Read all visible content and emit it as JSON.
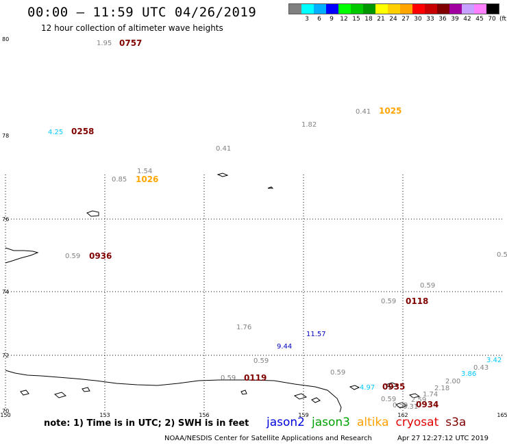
{
  "header": {
    "title": "00:00 – 11:59 UTC 04/26/2019",
    "subtitle": "12 hour collection of altimeter wave heights"
  },
  "legend": {
    "unit": "(ft)",
    "swatches": [
      {
        "color": "#808080",
        "label": ""
      },
      {
        "color": "#00ffff",
        "label": "3"
      },
      {
        "color": "#00b0ff",
        "label": "6"
      },
      {
        "color": "#0000ff",
        "label": "9"
      },
      {
        "color": "#00ff00",
        "label": "12"
      },
      {
        "color": "#00c800",
        "label": "15"
      },
      {
        "color": "#009600",
        "label": "18"
      },
      {
        "color": "#ffff00",
        "label": "21"
      },
      {
        "color": "#ffd000",
        "label": "24"
      },
      {
        "color": "#ffa500",
        "label": "27"
      },
      {
        "color": "#ff0000",
        "label": "30"
      },
      {
        "color": "#c80000",
        "label": "33"
      },
      {
        "color": "#800000",
        "label": "36"
      },
      {
        "color": "#a000a0",
        "label": "39"
      },
      {
        "color": "#c8a0ff",
        "label": "42"
      },
      {
        "color": "#ff80ff",
        "label": "45"
      },
      {
        "color": "#000000",
        "label": "70"
      }
    ]
  },
  "axes": {
    "latitude_labels": [
      "80",
      "78",
      "76",
      "74",
      "72",
      "70"
    ],
    "longitude_labels": [
      "150",
      "153",
      "156",
      "159",
      "162",
      "165"
    ]
  },
  "observations": [
    {
      "value": "1.95",
      "color": "#808080"
    },
    {
      "value": "0757",
      "color": "#800000",
      "kind": "time"
    },
    {
      "value": "0.41",
      "color": "#808080"
    },
    {
      "value": "1025",
      "color": "#ffa500",
      "kind": "time"
    },
    {
      "value": "1.82",
      "color": "#808080"
    },
    {
      "value": "4.25",
      "color": "#00c8ff"
    },
    {
      "value": "0258",
      "color": "#800000",
      "kind": "time"
    },
    {
      "value": "0.41",
      "color": "#808080"
    },
    {
      "value": "1.54",
      "color": "#808080"
    },
    {
      "value": "0.85",
      "color": "#808080"
    },
    {
      "value": "1026",
      "color": "#ffa500",
      "kind": "time"
    },
    {
      "value": "0.59",
      "color": "#808080"
    },
    {
      "value": "0936",
      "color": "#800000",
      "kind": "time"
    },
    {
      "value": "0.5",
      "color": "#808080"
    },
    {
      "value": "0.59",
      "color": "#808080"
    },
    {
      "value": "0.59",
      "color": "#808080"
    },
    {
      "value": "0118",
      "color": "#800000",
      "kind": "time"
    },
    {
      "value": "1.76",
      "color": "#808080"
    },
    {
      "value": "11.57",
      "color": "#0000c0"
    },
    {
      "value": "9.44",
      "color": "#0000c0"
    },
    {
      "value": "0.59",
      "color": "#808080"
    },
    {
      "value": "0.59",
      "color": "#808080"
    },
    {
      "value": "0119",
      "color": "#800000",
      "kind": "time"
    },
    {
      "value": "0.59",
      "color": "#808080"
    },
    {
      "value": "3.42",
      "color": "#00c8ff"
    },
    {
      "value": "0.43",
      "color": "#808080"
    },
    {
      "value": "3.86",
      "color": "#00c8ff"
    },
    {
      "value": "2.00",
      "color": "#808080"
    },
    {
      "value": "2.18",
      "color": "#808080"
    },
    {
      "value": "4.97",
      "color": "#00c8ff"
    },
    {
      "value": "0935",
      "color": "#800000",
      "kind": "time"
    },
    {
      "value": "1.74",
      "color": "#808080"
    },
    {
      "value": "0.59",
      "color": "#808080"
    },
    {
      "value": "2.59",
      "color": "#808080"
    },
    {
      "value": "0.59",
      "color": "#808080"
    },
    {
      "value": "0.31",
      "color": "#808080"
    },
    {
      "value": "0934",
      "color": "#800000",
      "kind": "time"
    }
  ],
  "footer": {
    "note": "note: 1) Time is in UTC; 2) SWH is in feet",
    "satellites": [
      {
        "name": "jason2",
        "color": "#0000e0"
      },
      {
        "name": "jason3",
        "color": "#00a000"
      },
      {
        "name": "altika",
        "color": "#ffa000"
      },
      {
        "name": "cryosat",
        "color": "#e00000"
      },
      {
        "name": "s3a",
        "color": "#800000"
      }
    ],
    "credit": "NOAA/NESDIS Center for Satellite Applications and Research",
    "timestamp": "Apr 27 12:27:12 UTC 2019"
  }
}
